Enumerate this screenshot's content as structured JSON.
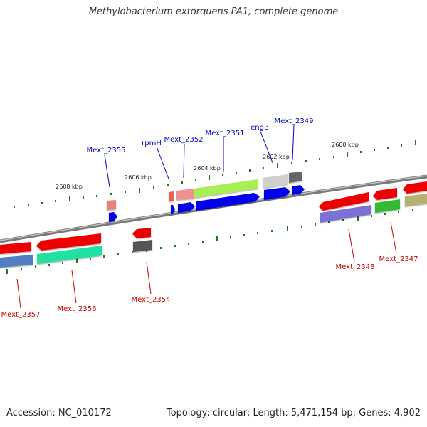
{
  "title": "Methylobacterium extorquens PA1, complete genome",
  "footer": {
    "accession": "Accession: NC_010172",
    "summary": "Topology: circular; Length: 5,471,154 bp; Genes: 4,902"
  },
  "colors": {
    "forward_label": "#0000cc",
    "reverse_label": "#cc0000",
    "tick": "#1a7a1a",
    "backbone": "#888888"
  },
  "scale_labels": [
    "2608 kbp",
    "2606 kbp",
    "2604 kbp",
    "2602 kbp",
    "2600 kbp"
  ],
  "forward_gene_labels": [
    "Mext_2355",
    "rpmH",
    "Mext_2352",
    "Mext_2351",
    "engB",
    "Mext_2349"
  ],
  "reverse_gene_labels": [
    "Mext_2357",
    "Mext_2356",
    "Mext_2354",
    "Mext_2348",
    "Mext_2347"
  ]
}
